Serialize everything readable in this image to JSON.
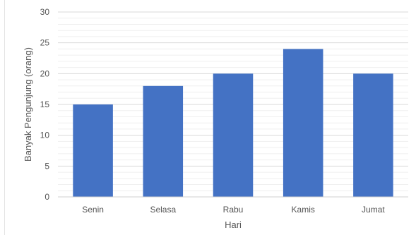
{
  "chart_data": {
    "type": "bar",
    "title": "",
    "xlabel": "Hari",
    "ylabel": "Banyak Pengunjung (orang)",
    "categories": [
      "Senin",
      "Selasa",
      "Rabu",
      "Kamis",
      "Jumat"
    ],
    "values": [
      15,
      18,
      20,
      24,
      20
    ],
    "ylim": [
      0,
      30
    ],
    "yticks": [
      "0",
      "5",
      "10",
      "15",
      "20",
      "25",
      "30"
    ],
    "grid": true,
    "legend": "none",
    "bar_color": "#4472C4",
    "grid_color": "#d9d9d9"
  }
}
